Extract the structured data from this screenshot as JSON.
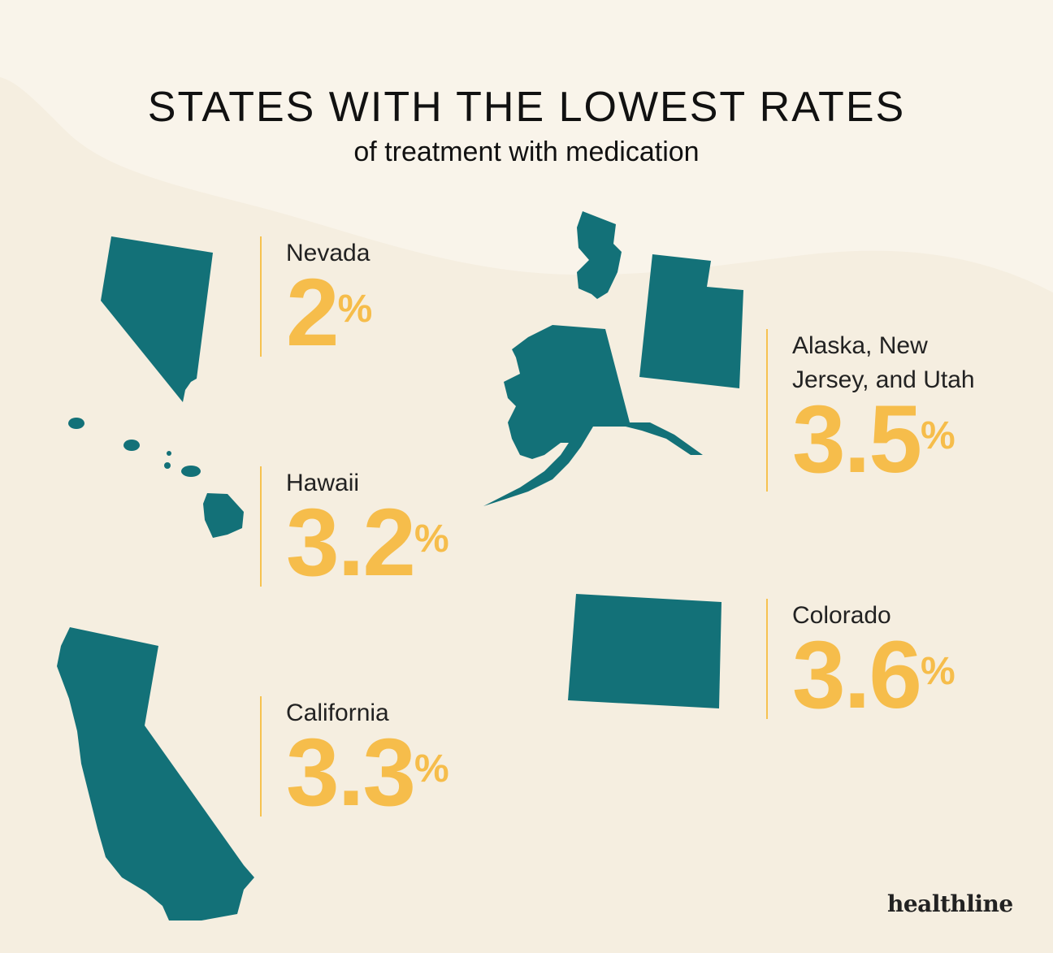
{
  "title": "STATES WITH THE LOWEST RATES",
  "subtitle": "of treatment with medication",
  "brand": "healthline",
  "colors": {
    "state_fill": "#137178",
    "accent": "#f6bd4b",
    "background": "#f5eee0",
    "wave": "#f9f4ea"
  },
  "stats": [
    {
      "name": "Nevada",
      "value": "2",
      "unit": "%"
    },
    {
      "name": "Hawaii",
      "value": "3.2",
      "unit": "%"
    },
    {
      "name": "California",
      "value": "3.3",
      "unit": "%"
    },
    {
      "name_line1": "Alaska, New",
      "name_line2": "Jersey, and Utah",
      "value": "3.5",
      "unit": "%"
    },
    {
      "name": "Colorado",
      "value": "3.6",
      "unit": "%"
    }
  ]
}
